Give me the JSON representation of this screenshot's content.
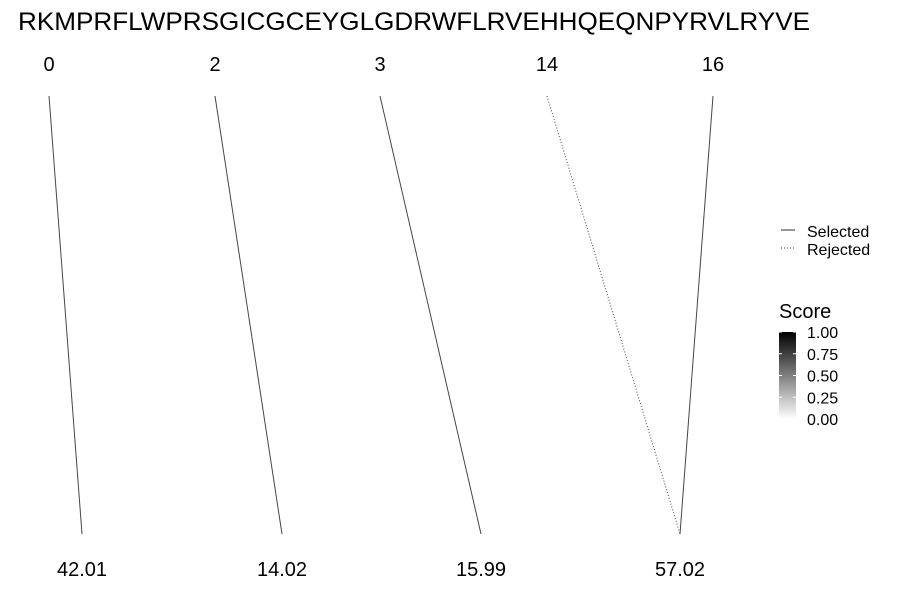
{
  "chart_data": {
    "type": "alignment",
    "title": "RKMPRFLWPRSGICGCEYGLGDRWFLRVEHHQEQNPYRVLRYVE",
    "top_labels": [
      "0",
      "2",
      "3",
      "14",
      "16"
    ],
    "bottom_labels": [
      "42.01",
      "14.02",
      "15.99",
      "57.02"
    ],
    "links": [
      {
        "from": "0",
        "to": "42.01",
        "status": "Selected",
        "score": 1.0
      },
      {
        "from": "2",
        "to": "14.02",
        "status": "Selected",
        "score": 1.0
      },
      {
        "from": "3",
        "to": "15.99",
        "status": "Selected",
        "score": 1.0
      },
      {
        "from": "14",
        "to": "57.02",
        "status": "Rejected",
        "score": 1.0
      },
      {
        "from": "16",
        "to": "57.02",
        "status": "Selected",
        "score": 1.0
      }
    ],
    "linetype_legend": {
      "entries": [
        {
          "label": "Selected",
          "dash": "solid"
        },
        {
          "label": "Rejected",
          "dash": "dotted"
        }
      ],
      "position": "right"
    },
    "fill_legend": {
      "title": "Score",
      "ticks": [
        "1.00",
        "0.75",
        "0.50",
        "0.25",
        "0.00"
      ],
      "range": [
        0,
        1
      ],
      "colors": {
        "low": "#ffffff",
        "high": "#000000"
      },
      "position": "right"
    }
  }
}
